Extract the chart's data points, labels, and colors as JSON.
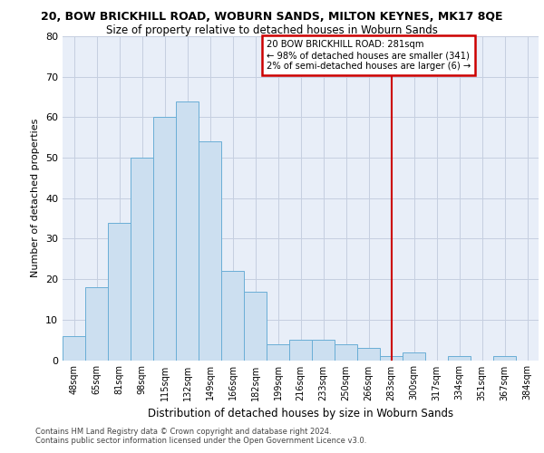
{
  "title_line1": "20, BOW BRICKHILL ROAD, WOBURN SANDS, MILTON KEYNES, MK17 8QE",
  "title_line2": "Size of property relative to detached houses in Woburn Sands",
  "xlabel": "Distribution of detached houses by size in Woburn Sands",
  "ylabel": "Number of detached properties",
  "footnote": "Contains HM Land Registry data © Crown copyright and database right 2024.\nContains public sector information licensed under the Open Government Licence v3.0.",
  "bin_labels": [
    "48sqm",
    "65sqm",
    "81sqm",
    "98sqm",
    "115sqm",
    "132sqm",
    "149sqm",
    "166sqm",
    "182sqm",
    "199sqm",
    "216sqm",
    "233sqm",
    "250sqm",
    "266sqm",
    "283sqm",
    "300sqm",
    "317sqm",
    "334sqm",
    "351sqm",
    "367sqm",
    "384sqm"
  ],
  "bar_heights": [
    6,
    18,
    34,
    50,
    60,
    64,
    54,
    22,
    17,
    4,
    5,
    5,
    4,
    3,
    1,
    2,
    0,
    1,
    0,
    1,
    0
  ],
  "bar_color": "#ccdff0",
  "bar_edge_color": "#6aaed6",
  "grid_color": "#c5cfe0",
  "background_color": "#e8eef8",
  "vline_x": 14,
  "vline_color": "#cc0000",
  "annotation_text": "20 BOW BRICKHILL ROAD: 281sqm\n← 98% of detached houses are smaller (341)\n2% of semi-detached houses are larger (6) →",
  "annotation_box_color": "#cc0000",
  "ylim": [
    0,
    80
  ],
  "yticks": [
    0,
    10,
    20,
    30,
    40,
    50,
    60,
    70,
    80
  ]
}
